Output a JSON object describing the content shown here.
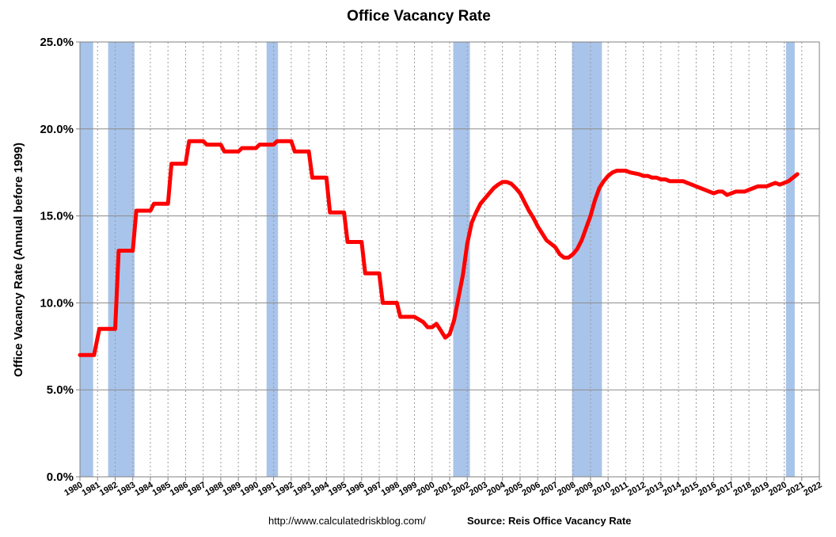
{
  "chart_data": {
    "type": "line",
    "title": "Office Vacancy Rate",
    "ylabel": "Office Vacancy Rate (Annual before 1999)",
    "xlabel": "",
    "xlim": [
      1980,
      2022
    ],
    "ylim": [
      0,
      25
    ],
    "y_ticks": [
      "0.0%",
      "5.0%",
      "10.0%",
      "15.0%",
      "20.0%",
      "25.0%"
    ],
    "x_ticks": [
      "1980",
      "1981",
      "1982",
      "1983",
      "1984",
      "1985",
      "1986",
      "1987",
      "1988",
      "1989",
      "1990",
      "1991",
      "1992",
      "1993",
      "1994",
      "1995",
      "1996",
      "1997",
      "1998",
      "1999",
      "2000",
      "2001",
      "2002",
      "2003",
      "2004",
      "2005",
      "2006",
      "2007",
      "2008",
      "2009",
      "2010",
      "2011",
      "2012",
      "2013",
      "2014",
      "2015",
      "2016",
      "2017",
      "2018",
      "2019",
      "2020",
      "2021",
      "2022"
    ],
    "grid": true,
    "line_color": "#ff0000",
    "recession_color": "#a9c4ea",
    "recessions": [
      [
        1980.0,
        1980.75
      ],
      [
        1981.6,
        1983.1
      ],
      [
        1990.6,
        1991.25
      ],
      [
        2001.2,
        2002.15
      ],
      [
        2007.95,
        2009.65
      ],
      [
        2020.1,
        2020.6
      ]
    ],
    "series": [
      {
        "values": [
          [
            1980.0,
            7.0
          ],
          [
            1980.8,
            7.0
          ],
          [
            1981.1,
            8.5
          ],
          [
            1982.0,
            8.5
          ],
          [
            1982.2,
            13.0
          ],
          [
            1983.0,
            13.0
          ],
          [
            1983.2,
            15.3
          ],
          [
            1984.0,
            15.3
          ],
          [
            1984.2,
            15.7
          ],
          [
            1985.0,
            15.7
          ],
          [
            1985.2,
            18.0
          ],
          [
            1986.0,
            18.0
          ],
          [
            1986.2,
            19.3
          ],
          [
            1987.0,
            19.3
          ],
          [
            1987.2,
            19.1
          ],
          [
            1988.0,
            19.1
          ],
          [
            1988.2,
            18.7
          ],
          [
            1989.0,
            18.7
          ],
          [
            1989.2,
            18.9
          ],
          [
            1990.0,
            18.9
          ],
          [
            1990.2,
            19.1
          ],
          [
            1991.0,
            19.1
          ],
          [
            1991.2,
            19.3
          ],
          [
            1992.0,
            19.3
          ],
          [
            1992.2,
            18.7
          ],
          [
            1993.0,
            18.7
          ],
          [
            1993.2,
            17.2
          ],
          [
            1994.0,
            17.2
          ],
          [
            1994.2,
            15.2
          ],
          [
            1995.0,
            15.2
          ],
          [
            1995.2,
            13.5
          ],
          [
            1996.0,
            13.5
          ],
          [
            1996.2,
            11.7
          ],
          [
            1997.0,
            11.7
          ],
          [
            1997.2,
            10.0
          ],
          [
            1998.0,
            10.0
          ],
          [
            1998.2,
            9.2
          ],
          [
            1999.0,
            9.2
          ],
          [
            1999.5,
            8.9
          ],
          [
            1999.75,
            8.6
          ],
          [
            2000.0,
            8.6
          ],
          [
            2000.25,
            8.8
          ],
          [
            2000.5,
            8.4
          ],
          [
            2000.75,
            8.0
          ],
          [
            2001.0,
            8.2
          ],
          [
            2001.25,
            9.0
          ],
          [
            2001.5,
            10.3
          ],
          [
            2001.75,
            11.6
          ],
          [
            2002.0,
            13.4
          ],
          [
            2002.25,
            14.6
          ],
          [
            2002.5,
            15.2
          ],
          [
            2002.75,
            15.7
          ],
          [
            2003.0,
            16.0
          ],
          [
            2003.25,
            16.3
          ],
          [
            2003.5,
            16.6
          ],
          [
            2003.75,
            16.8
          ],
          [
            2004.0,
            16.95
          ],
          [
            2004.25,
            16.95
          ],
          [
            2004.5,
            16.85
          ],
          [
            2004.75,
            16.6
          ],
          [
            2005.0,
            16.3
          ],
          [
            2005.25,
            15.8
          ],
          [
            2005.5,
            15.3
          ],
          [
            2005.75,
            14.9
          ],
          [
            2006.0,
            14.4
          ],
          [
            2006.25,
            14.0
          ],
          [
            2006.5,
            13.6
          ],
          [
            2006.75,
            13.4
          ],
          [
            2007.0,
            13.2
          ],
          [
            2007.25,
            12.8
          ],
          [
            2007.5,
            12.6
          ],
          [
            2007.75,
            12.6
          ],
          [
            2008.0,
            12.8
          ],
          [
            2008.25,
            13.1
          ],
          [
            2008.5,
            13.6
          ],
          [
            2008.75,
            14.3
          ],
          [
            2009.0,
            15.0
          ],
          [
            2009.25,
            15.9
          ],
          [
            2009.5,
            16.6
          ],
          [
            2009.75,
            17.0
          ],
          [
            2010.0,
            17.3
          ],
          [
            2010.25,
            17.5
          ],
          [
            2010.5,
            17.6
          ],
          [
            2010.75,
            17.6
          ],
          [
            2011.0,
            17.6
          ],
          [
            2011.25,
            17.5
          ],
          [
            2011.5,
            17.45
          ],
          [
            2011.75,
            17.4
          ],
          [
            2012.0,
            17.3
          ],
          [
            2012.25,
            17.3
          ],
          [
            2012.5,
            17.2
          ],
          [
            2012.75,
            17.2
          ],
          [
            2013.0,
            17.1
          ],
          [
            2013.25,
            17.1
          ],
          [
            2013.5,
            17.0
          ],
          [
            2013.75,
            17.0
          ],
          [
            2014.0,
            17.0
          ],
          [
            2014.25,
            17.0
          ],
          [
            2014.5,
            16.9
          ],
          [
            2014.75,
            16.8
          ],
          [
            2015.0,
            16.7
          ],
          [
            2015.25,
            16.6
          ],
          [
            2015.5,
            16.5
          ],
          [
            2015.75,
            16.4
          ],
          [
            2016.0,
            16.3
          ],
          [
            2016.25,
            16.4
          ],
          [
            2016.5,
            16.4
          ],
          [
            2016.75,
            16.2
          ],
          [
            2017.0,
            16.3
          ],
          [
            2017.25,
            16.4
          ],
          [
            2017.5,
            16.4
          ],
          [
            2017.75,
            16.4
          ],
          [
            2018.0,
            16.5
          ],
          [
            2018.25,
            16.6
          ],
          [
            2018.5,
            16.7
          ],
          [
            2018.75,
            16.7
          ],
          [
            2019.0,
            16.7
          ],
          [
            2019.25,
            16.8
          ],
          [
            2019.5,
            16.9
          ],
          [
            2019.75,
            16.8
          ],
          [
            2020.0,
            16.9
          ],
          [
            2020.25,
            17.0
          ],
          [
            2020.5,
            17.2
          ],
          [
            2020.75,
            17.4
          ]
        ]
      }
    ]
  },
  "footer": {
    "url": "http://www.calculatedriskblog.com/",
    "source": "Source: Reis Office Vacancy Rate"
  }
}
